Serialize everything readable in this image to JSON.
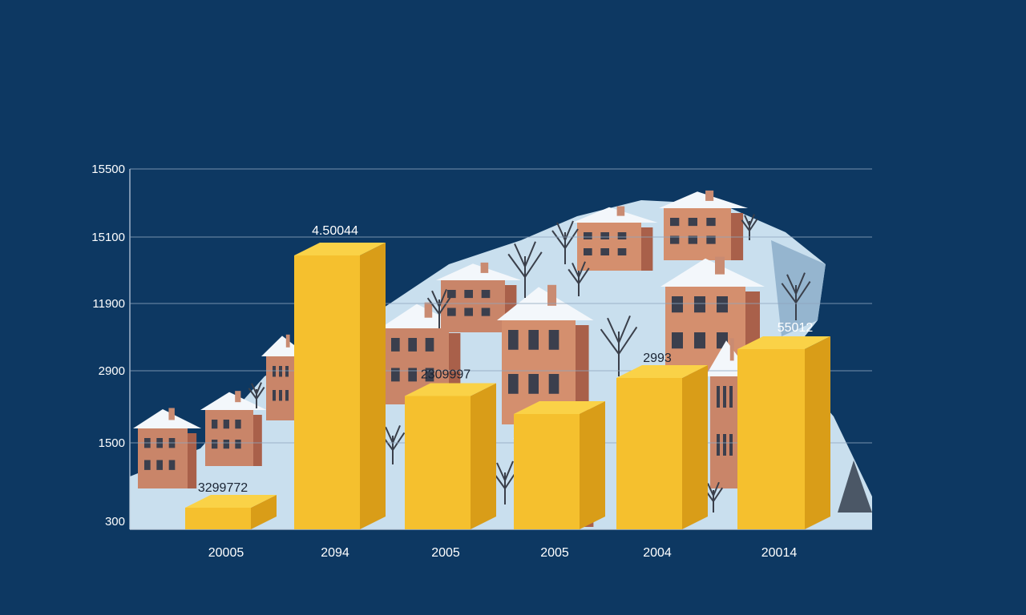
{
  "chart_data": {
    "type": "bar",
    "title": "",
    "xlabel": "",
    "ylabel": "",
    "grid": true,
    "y_tick_labels": [
      "300",
      "1500",
      "2900",
      "11900",
      "15100",
      "15500"
    ],
    "ylim": [
      0,
      5
    ],
    "categories": [
      "20005",
      "2094",
      "2005",
      "2005",
      "2004",
      "20014"
    ],
    "values": [
      0.3,
      3.8,
      1.85,
      1.6,
      2.1,
      2.5
    ],
    "data_labels": [
      "3299772",
      "4.50044",
      "2309997",
      "",
      "2993",
      "55012"
    ],
    "bar_color": "#f5c02e",
    "bar_side_color": "#d99d18",
    "bar_top_color": "#fad247",
    "background_color": "#0d3862",
    "illustration": "snowy-town"
  }
}
